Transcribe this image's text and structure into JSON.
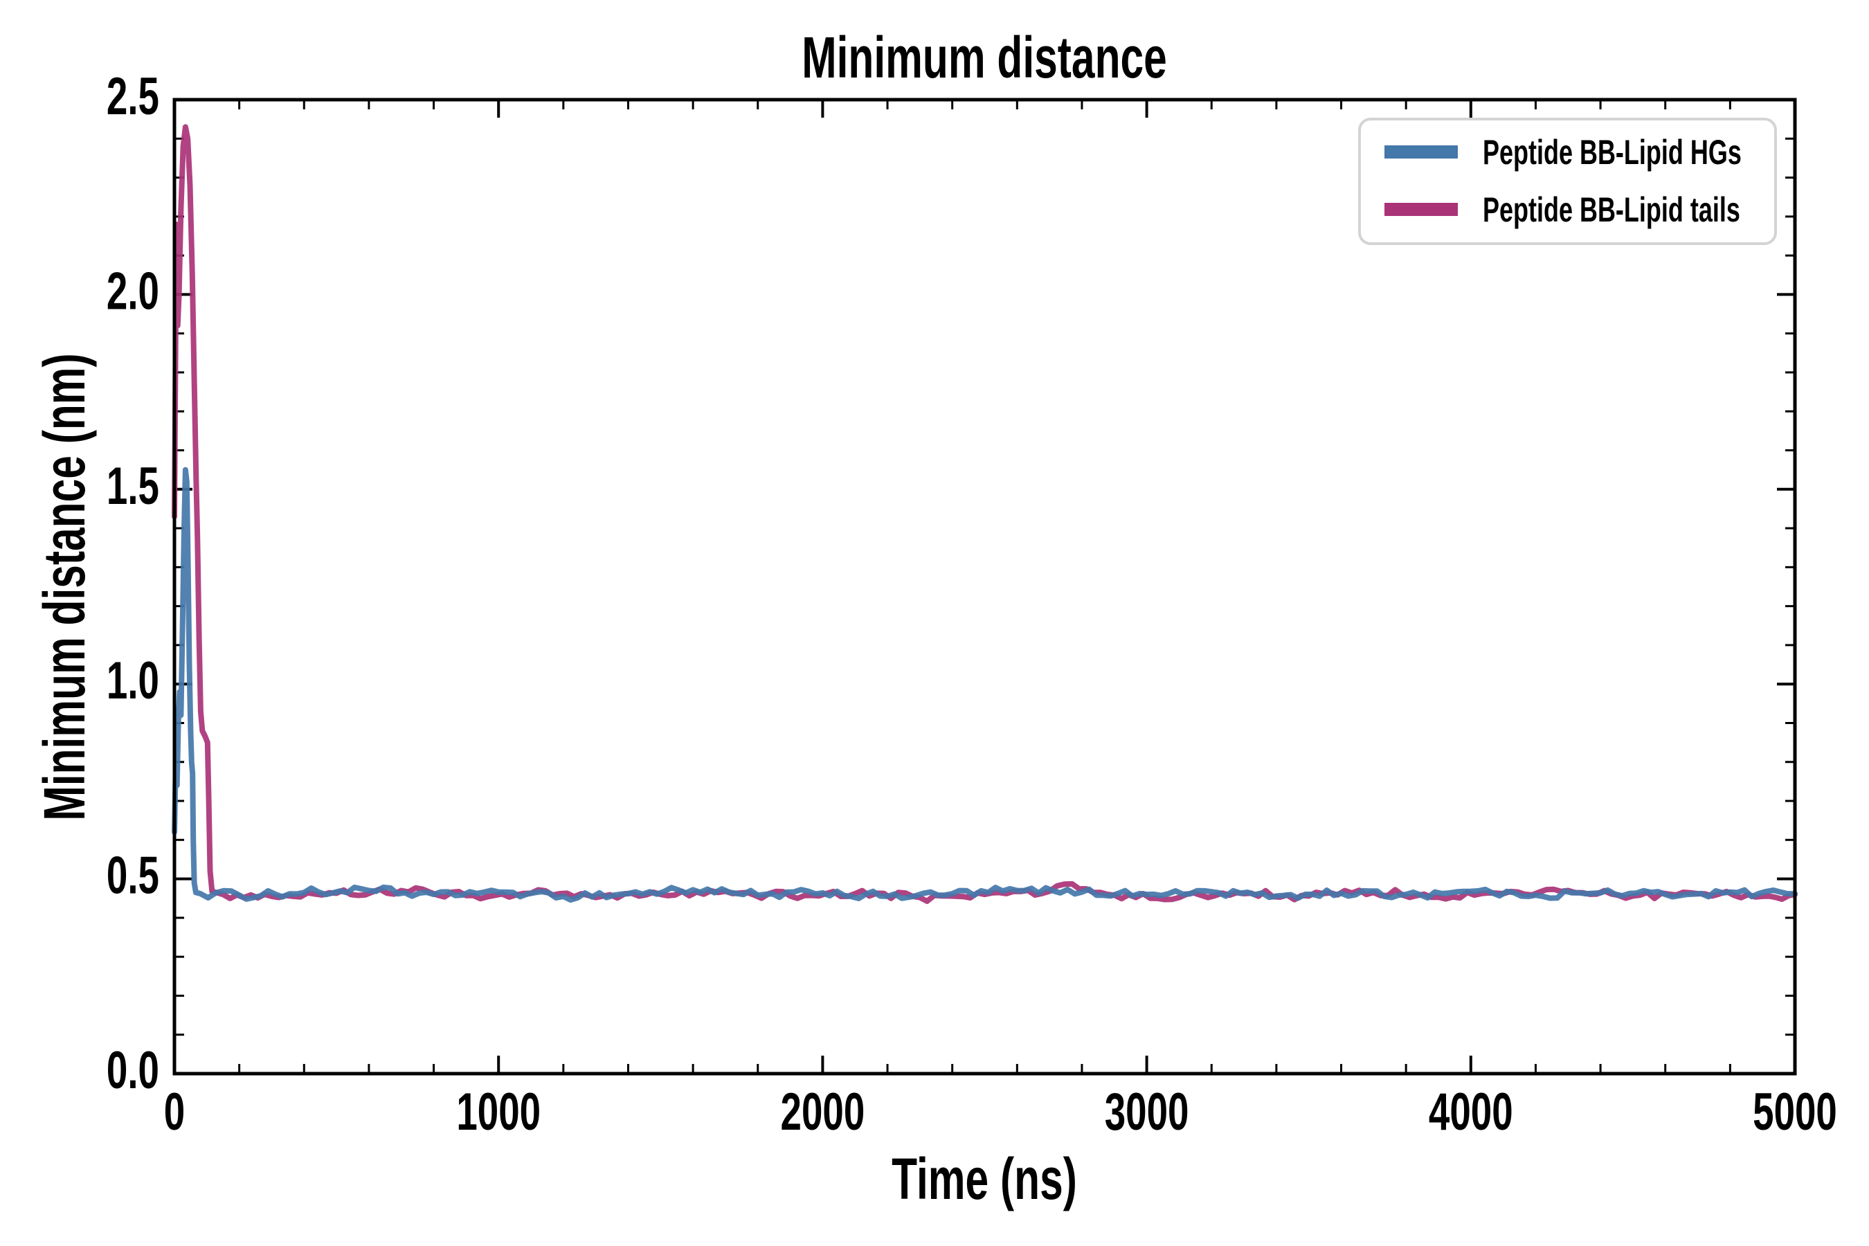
{
  "chart_data": {
    "type": "line",
    "title": "Minimum distance",
    "xlabel": "Time (ns)",
    "ylabel": "Minimum distance (nm)",
    "xlim": [
      0,
      5000
    ],
    "ylim": [
      0,
      2.5
    ],
    "x_ticks": [
      0,
      1000,
      2000,
      3000,
      4000,
      5000
    ],
    "x_tick_labels": [
      "0",
      "1000",
      "2000",
      "3000",
      "4000",
      "5000"
    ],
    "y_ticks": [
      0,
      0.5,
      1.0,
      1.5,
      2.0,
      2.5
    ],
    "y_tick_labels": [
      "0.0",
      "0.5",
      "1.0",
      "1.5",
      "2.0",
      "2.5"
    ],
    "x_minor_step": 200,
    "y_minor_step": 0.1,
    "tick_direction": "in",
    "grid": false,
    "legend_position": "upper right",
    "background_color": "#ffffff",
    "axis_color": "#000000",
    "legend_border_color": "#d4d4d4",
    "series": [
      {
        "name": "Peptide BB-Lipid HGs",
        "color": "#4477AA",
        "peak": {
          "t": 34,
          "value": 1.55
        },
        "settled_value": 0.46,
        "noise_amplitude": 0.012,
        "points": [
          [
            0,
            0.62
          ],
          [
            4,
            0.8
          ],
          [
            8,
            0.74
          ],
          [
            12,
            0.9
          ],
          [
            16,
            0.98
          ],
          [
            20,
            0.92
          ],
          [
            25,
            1.15
          ],
          [
            30,
            1.4
          ],
          [
            34,
            1.55
          ],
          [
            38,
            1.52
          ],
          [
            42,
            1.3
          ],
          [
            46,
            1.05
          ],
          [
            50,
            0.88
          ],
          [
            53,
            0.8
          ],
          [
            56,
            0.77
          ],
          [
            58,
            0.6
          ],
          [
            61,
            0.49
          ],
          [
            66,
            0.465
          ],
          [
            80,
            0.462
          ],
          [
            200,
            0.458
          ],
          [
            400,
            0.465
          ],
          [
            600,
            0.47
          ],
          [
            800,
            0.46
          ],
          [
            1000,
            0.466
          ],
          [
            1200,
            0.455
          ],
          [
            1400,
            0.462
          ],
          [
            1600,
            0.472
          ],
          [
            1800,
            0.458
          ],
          [
            2000,
            0.464
          ],
          [
            2200,
            0.455
          ],
          [
            2400,
            0.462
          ],
          [
            2600,
            0.47
          ],
          [
            2800,
            0.466
          ],
          [
            3000,
            0.46
          ],
          [
            3200,
            0.467
          ],
          [
            3400,
            0.456
          ],
          [
            3600,
            0.463
          ],
          [
            3800,
            0.46
          ],
          [
            4000,
            0.468
          ],
          [
            4200,
            0.458
          ],
          [
            4400,
            0.464
          ],
          [
            4600,
            0.46
          ],
          [
            4800,
            0.466
          ],
          [
            5000,
            0.462
          ]
        ]
      },
      {
        "name": "Peptide BB-Lipid tails",
        "color": "#AA3377",
        "peak": {
          "t": 34,
          "value": 2.43
        },
        "settled_value": 0.46,
        "noise_amplitude": 0.012,
        "points": [
          [
            0,
            1.43
          ],
          [
            3,
            1.8
          ],
          [
            6,
            2.18
          ],
          [
            10,
            1.92
          ],
          [
            14,
            2.0
          ],
          [
            20,
            2.22
          ],
          [
            27,
            2.38
          ],
          [
            34,
            2.43
          ],
          [
            41,
            2.4
          ],
          [
            48,
            2.28
          ],
          [
            55,
            2.05
          ],
          [
            61,
            1.78
          ],
          [
            67,
            1.52
          ],
          [
            71,
            1.38
          ],
          [
            76,
            1.12
          ],
          [
            81,
            0.93
          ],
          [
            86,
            0.88
          ],
          [
            95,
            0.865
          ],
          [
            102,
            0.85
          ],
          [
            106,
            0.7
          ],
          [
            110,
            0.52
          ],
          [
            116,
            0.468
          ],
          [
            150,
            0.46
          ],
          [
            300,
            0.455
          ],
          [
            500,
            0.463
          ],
          [
            700,
            0.47
          ],
          [
            900,
            0.457
          ],
          [
            1100,
            0.463
          ],
          [
            1300,
            0.452
          ],
          [
            1500,
            0.46
          ],
          [
            1700,
            0.468
          ],
          [
            1900,
            0.456
          ],
          [
            2100,
            0.462
          ],
          [
            2300,
            0.452
          ],
          [
            2500,
            0.46
          ],
          [
            2700,
            0.468
          ],
          [
            2770,
            0.487
          ],
          [
            2900,
            0.458
          ],
          [
            3100,
            0.452
          ],
          [
            3300,
            0.462
          ],
          [
            3500,
            0.456
          ],
          [
            3700,
            0.465
          ],
          [
            3900,
            0.453
          ],
          [
            4100,
            0.462
          ],
          [
            4300,
            0.47
          ],
          [
            4500,
            0.456
          ],
          [
            4700,
            0.462
          ],
          [
            4900,
            0.455
          ],
          [
            5000,
            0.46
          ]
        ]
      }
    ]
  }
}
